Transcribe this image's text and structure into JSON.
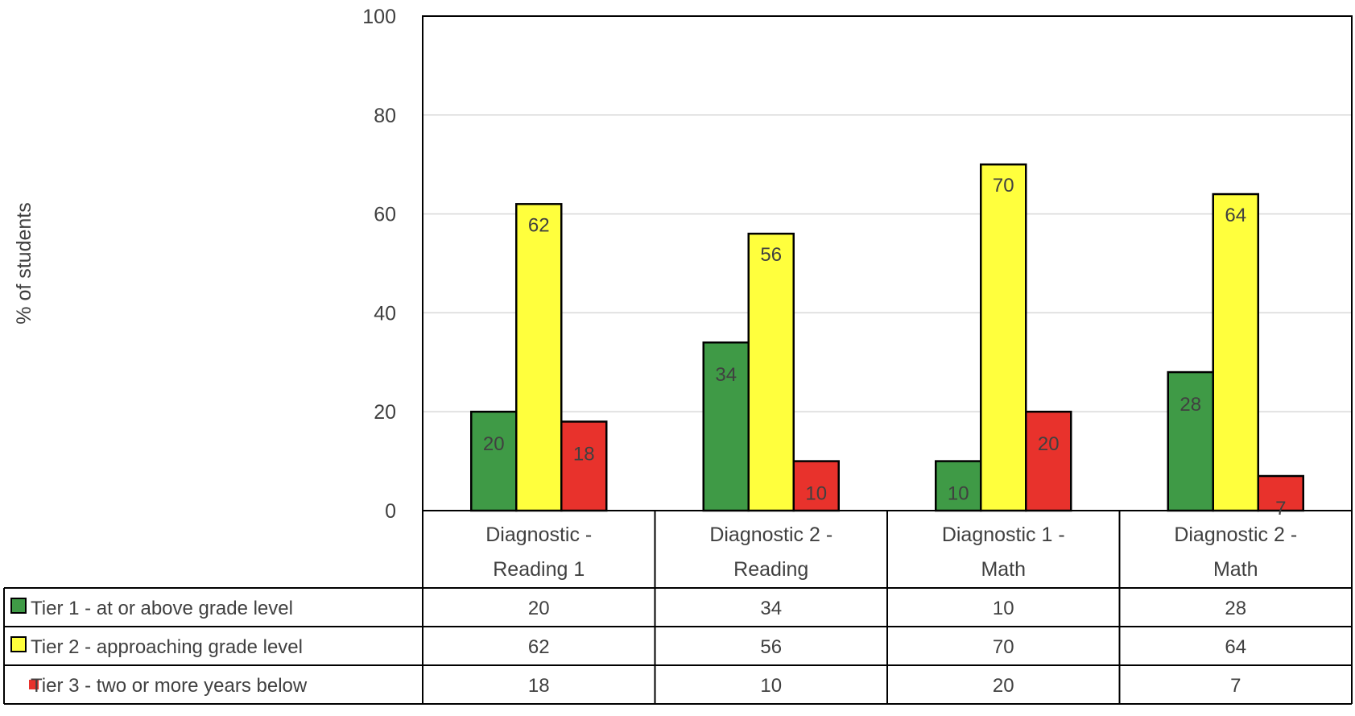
{
  "chart_data": {
    "type": "bar",
    "title": "",
    "xlabel": "",
    "ylabel": "% of students",
    "ylim": [
      0,
      100
    ],
    "yticks": [
      0,
      20,
      40,
      60,
      80,
      100
    ],
    "grid": true,
    "legend": "data-table-left",
    "categories": [
      [
        "Diagnostic  -",
        "Reading 1"
      ],
      [
        "Diagnostic 2 -",
        "Reading"
      ],
      [
        "Diagnostic 1 -",
        "Math"
      ],
      [
        "Diagnostic 2 -",
        "Math"
      ]
    ],
    "series": [
      {
        "name": "Tier 1 - at or above grade level",
        "color": "#3f9a46",
        "values": [
          20,
          34,
          10,
          28
        ]
      },
      {
        "name": "Tier 2 - approaching grade level",
        "color": "#ffff3d",
        "values": [
          62,
          56,
          70,
          64
        ]
      },
      {
        "name": "Tier 3 - two or more years below",
        "color": "#e8322c",
        "values": [
          18,
          10,
          20,
          7
        ]
      }
    ]
  }
}
